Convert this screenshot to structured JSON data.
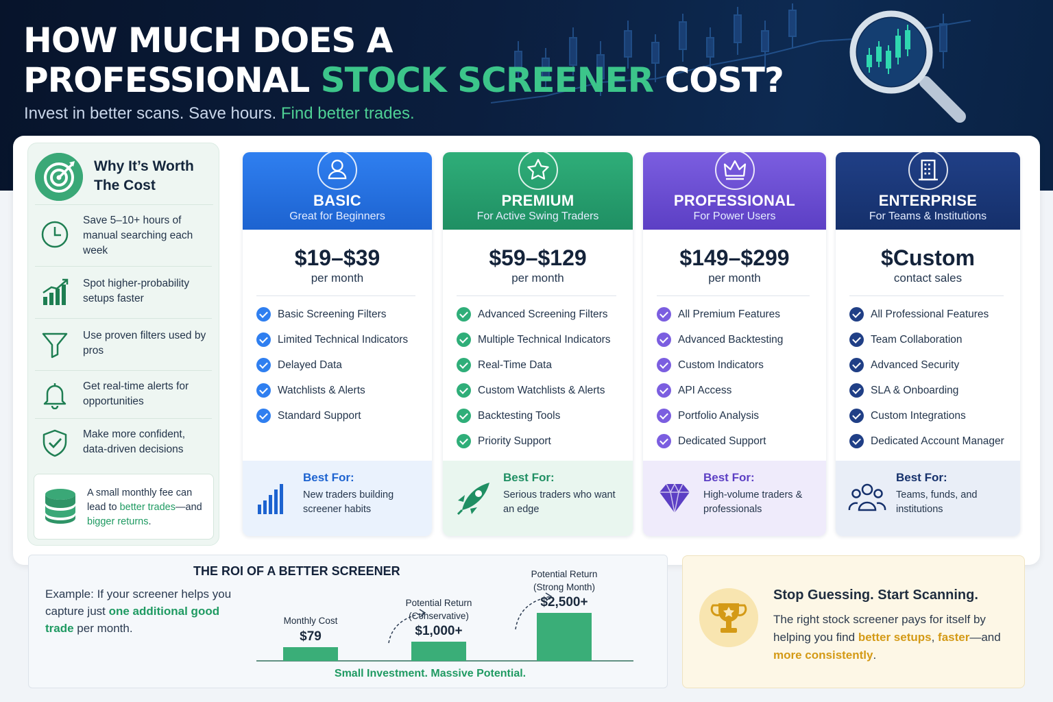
{
  "header": {
    "title_line1": "HOW MUCH DOES A",
    "title_line2_pre": "PROFESSIONAL ",
    "title_line2_highlight": "STOCK SCREENER",
    "title_line2_post": " COST?",
    "subtitle_pre": "Invest in better scans. Save hours. ",
    "subtitle_highlight": "Find better trades."
  },
  "why": {
    "title": "Why It’s Worth The Cost",
    "items": [
      {
        "icon": "clock-icon",
        "text": "Save 5–10+ hours of manual searching each week"
      },
      {
        "icon": "growth-chart-icon",
        "text": "Spot higher-probability setups faster"
      },
      {
        "icon": "filter-icon",
        "text": "Use proven filters used by pros"
      },
      {
        "icon": "bell-icon",
        "text": "Get real-time alerts for opportunities"
      },
      {
        "icon": "shield-check-icon",
        "text": "Make more confident, data-driven decisions"
      }
    ],
    "note_pre": "A small monthly fee can lead to ",
    "note_h1": "better trades",
    "note_mid": "—and ",
    "note_h2": "bigger returns",
    "note_post": "."
  },
  "plans": [
    {
      "name": "BASIC",
      "tagline": "Great for Beginners",
      "price": "$19–$39",
      "period": "per month",
      "color": "#1d63d0",
      "color2": "#2f7ff0",
      "icon": "user-icon",
      "best_icon": "bar-chart-icon",
      "features": [
        "Basic Screening Filters",
        "Limited Technical Indicators",
        "Delayed Data",
        "Watchlists & Alerts",
        "Standard Support"
      ],
      "best_label": "Best For:",
      "best_text": "New traders building screener habits"
    },
    {
      "name": "PREMIUM",
      "tagline": "For Active Swing Traders",
      "price": "$59–$129",
      "period": "per month",
      "color": "#1f8f63",
      "color2": "#2fae79",
      "icon": "star-icon",
      "best_icon": "rocket-icon",
      "features": [
        "Advanced Screening Filters",
        "Multiple Technical Indicators",
        "Real-Time Data",
        "Custom Watchlists & Alerts",
        "Backtesting Tools",
        "Priority Support"
      ],
      "best_label": "Best For:",
      "best_text": "Serious traders who want an edge"
    },
    {
      "name": "PROFESSIONAL",
      "tagline": "For Power Users",
      "price": "$149–$299",
      "period": "per month",
      "color": "#5c3fc4",
      "color2": "#7b5ee0",
      "icon": "crown-icon",
      "best_icon": "diamond-icon",
      "features": [
        "All Premium Features",
        "Advanced Backtesting",
        "Custom Indicators",
        "API Access",
        "Portfolio Analysis",
        "Dedicated Support"
      ],
      "best_label": "Best For:",
      "best_text": "High-volume traders & professionals"
    },
    {
      "name": "ENTERPRISE",
      "tagline": "For Teams & Institutions",
      "price": "$Custom",
      "period": "contact sales",
      "color": "#15306b",
      "color2": "#203f86",
      "icon": "building-icon",
      "best_icon": "team-icon",
      "features": [
        "All Professional Features",
        "Team Collaboration",
        "Advanced Security",
        "SLA & Onboarding",
        "Custom Integrations",
        "Dedicated Account Manager"
      ],
      "best_label": "Best For:",
      "best_text": "Teams, funds, and institutions"
    }
  ],
  "roi": {
    "title": "THE ROI OF A BETTER SCREENER",
    "text_pre": "Example: If your screener helps you capture just ",
    "text_highlight": "one additional good trade",
    "text_post": " per month.",
    "footer": "Small Investment. Massive Potential.",
    "bars": [
      {
        "label_line1": "Monthly Cost",
        "label_line2": "",
        "value_label": "$79",
        "value": 79
      },
      {
        "label_line1": "Potential Return",
        "label_line2": "(Conservative)",
        "value_label": "$1,000+",
        "value": 1000
      },
      {
        "label_line1": "Potential Return",
        "label_line2": "(Strong Month)",
        "value_label": "$2,500+",
        "value": 2500
      }
    ]
  },
  "cta": {
    "title": "Stop Guessing. Start Scanning.",
    "text_pre": "The right stock screener pays for itself by helping you find ",
    "h1": "better setups",
    "mid1": ", ",
    "h2": "faster",
    "mid2": "—and ",
    "h3": "more consistently",
    "post": "."
  },
  "colors": {
    "accent_green": "#3cc58a",
    "accent_gold": "#d49a16",
    "hero_bg": "#0b1e3e"
  }
}
